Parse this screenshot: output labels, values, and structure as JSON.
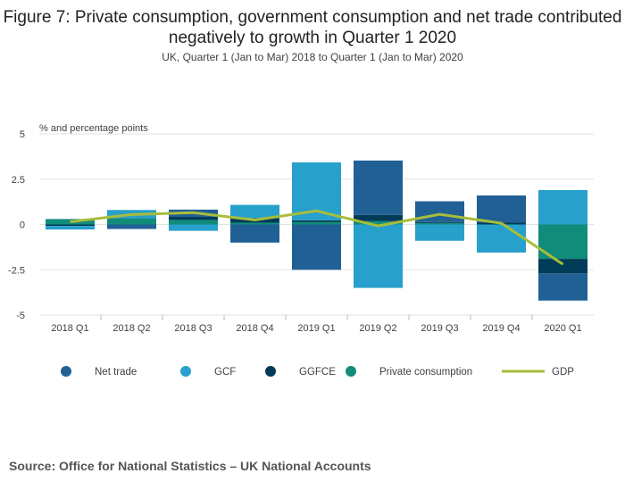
{
  "title": "Figure 7: Private consumption, government consumption and net trade contributed negatively to growth in Quarter 1 2020",
  "subtitle": "UK, Quarter 1 (Jan to Mar) 2018 to Quarter 1 (Jan to Mar) 2020",
  "source": "Source: Office for National Statistics – UK National Accounts",
  "chart_data": {
    "type": "bar",
    "stacked": true,
    "ylabel": "% and percentage points",
    "ylim": [
      -5,
      5
    ],
    "yticks": [
      5,
      2.5,
      0,
      -2.5,
      -5
    ],
    "ytick_labels": [
      "5",
      "2.5",
      "0",
      "-2.5",
      "-5"
    ],
    "grid": true,
    "legend_position": "bottom",
    "categories": [
      "2018 Q1",
      "2018 Q2",
      "2018 Q3",
      "2018 Q4",
      "2019 Q1",
      "2019 Q2",
      "2019 Q3",
      "2019 Q4",
      "2020 Q1"
    ],
    "series": [
      {
        "name": "Net trade",
        "type": "bar",
        "color": "#206095",
        "values": [
          0.0,
          -0.25,
          0.4,
          -1.0,
          -2.5,
          3.0,
          1.15,
          1.5,
          -1.5
        ]
      },
      {
        "name": "GCF",
        "type": "bar",
        "color": "#27a0cc",
        "values": [
          -0.2,
          0.45,
          -0.35,
          0.72,
          3.2,
          -3.5,
          -0.9,
          -1.55,
          1.9
        ]
      },
      {
        "name": "GGFCE",
        "type": "bar",
        "color": "#003c57",
        "values": [
          -0.08,
          0.0,
          0.17,
          0.26,
          0.1,
          0.35,
          0.05,
          0.1,
          -0.8
        ]
      },
      {
        "name": "Private consumption",
        "type": "bar",
        "color": "#118c7b",
        "values": [
          0.3,
          0.35,
          0.25,
          0.1,
          0.13,
          0.18,
          0.08,
          0.0,
          -1.9
        ]
      },
      {
        "name": "GDP",
        "type": "line",
        "color": "#a8bd3a",
        "values": [
          0.15,
          0.55,
          0.65,
          0.25,
          0.75,
          -0.08,
          0.56,
          0.07,
          -2.2
        ]
      }
    ]
  }
}
